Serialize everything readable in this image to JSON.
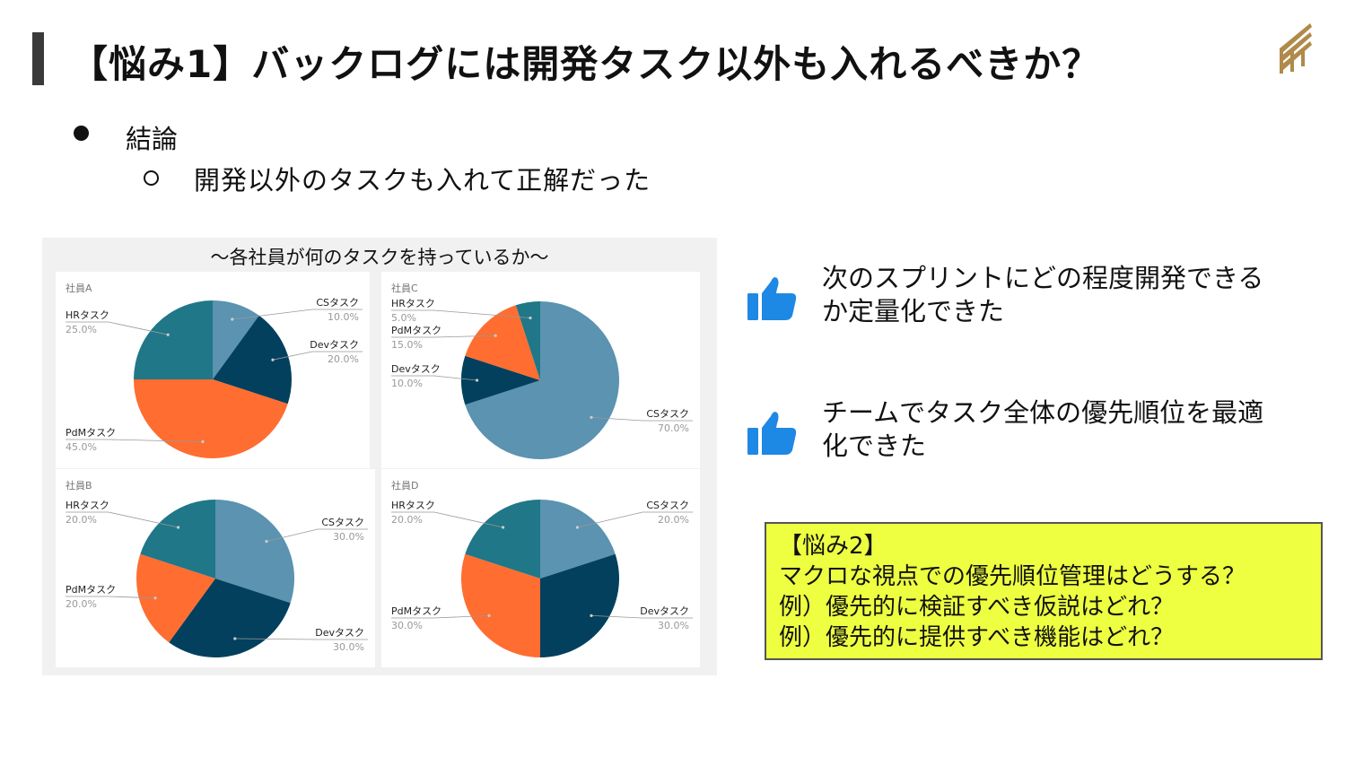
{
  "title": "【悩み1】バックログには開発タスク以外も入れるべきか？",
  "bullets": {
    "level1": "結論",
    "level2": "開発以外のタスクも入れて正解だった"
  },
  "chart_panel_title": "〜各社員が何のタスクを持っているか〜",
  "colors": {
    "CS": "#5b93b0",
    "Dev": "#02405e",
    "PdM": "#ff6d31",
    "HR": "#1f7788",
    "label": "#222222",
    "percent": "#999999",
    "leader": "#999999",
    "accent_blue": "#1e88e5",
    "callout_bg": "#eeff41"
  },
  "chart_data": [
    {
      "type": "pie",
      "title": "社員A",
      "categories": [
        "CSタスク",
        "Devタスク",
        "PdMタスク",
        "HRタスク"
      ],
      "values": [
        10,
        20,
        45,
        25
      ],
      "value_labels": [
        "10.0%",
        "20.0%",
        "45.0%",
        "25.0%"
      ]
    },
    {
      "type": "pie",
      "title": "社員C",
      "categories": [
        "CSタスク",
        "Devタスク",
        "PdMタスク",
        "HRタスク"
      ],
      "values": [
        70,
        10,
        15,
        5
      ],
      "value_labels": [
        "70.0%",
        "10.0%",
        "15.0%",
        "5.0%"
      ]
    },
    {
      "type": "pie",
      "title": "社員B",
      "categories": [
        "CSタスク",
        "Devタスク",
        "PdMタスク",
        "HRタスク"
      ],
      "values": [
        30,
        30,
        20,
        20
      ],
      "value_labels": [
        "30.0%",
        "30.0%",
        "20.0%",
        "20.0%"
      ]
    },
    {
      "type": "pie",
      "title": "社員D",
      "categories": [
        "CSタスク",
        "Devタスク",
        "PdMタスク",
        "HRタスク"
      ],
      "values": [
        20,
        30,
        30,
        20
      ],
      "value_labels": [
        "20.0%",
        "30.0%",
        "30.0%",
        "20.0%"
      ]
    }
  ],
  "features": [
    {
      "icon": "thumbs-up-icon",
      "text_lines": [
        "次のスプリントにどの程度開発できる",
        "か定量化できた"
      ]
    },
    {
      "icon": "thumbs-up-icon",
      "text_lines": [
        "チームでタスク全体の優先順位を最適",
        "化できた"
      ]
    }
  ],
  "callout": {
    "lines": [
      "【悩み2】",
      "マクロな視点での優先順位管理はどうする？",
      "例）優先的に検証すべき仮説はどれ？",
      "例）優先的に提供すべき機能はどれ？"
    ]
  }
}
